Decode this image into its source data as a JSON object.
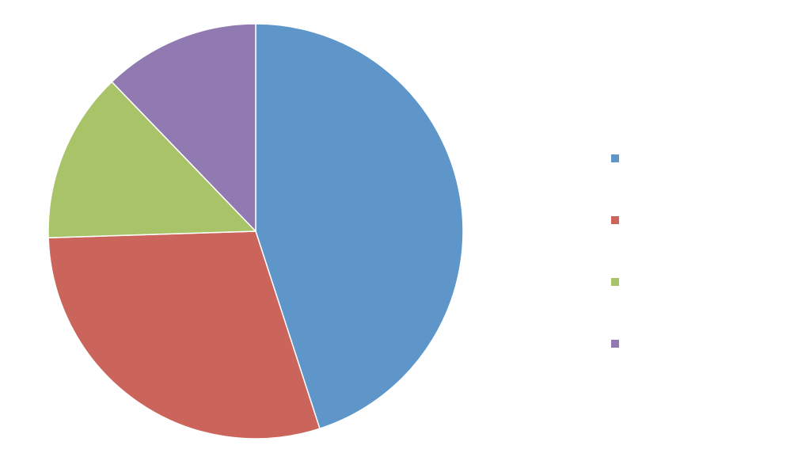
{
  "chart_data": {
    "type": "pie",
    "categories": [
      "",
      "",
      "",
      ""
    ],
    "values": [
      45.0,
      29.5,
      13.3,
      12.2
    ],
    "colors": [
      "#5F96C9",
      "#CB645A",
      "#A9C369",
      "#917AB1"
    ],
    "start_angle_deg": 0,
    "direction": "clockwise",
    "legend_position": "right",
    "title": ""
  }
}
